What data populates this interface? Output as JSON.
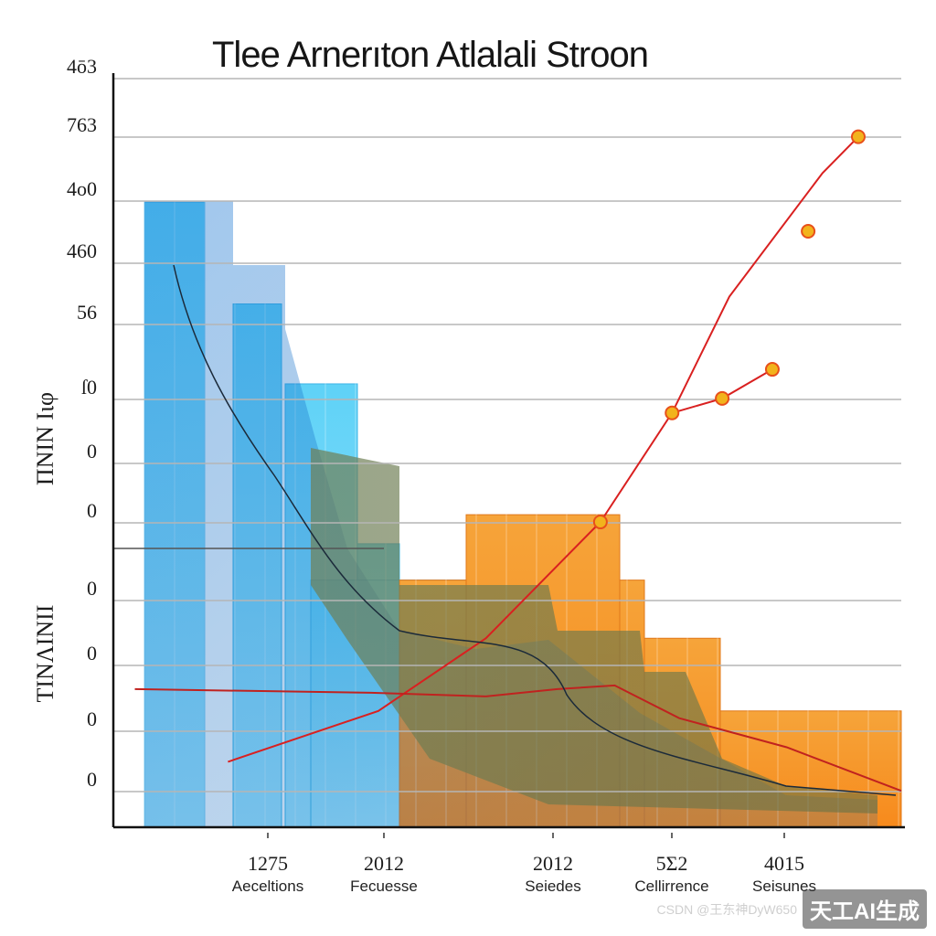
{
  "chart_data": {
    "type": "bar",
    "title": "Tlee Arnerıton Atlalali Stroon",
    "y_tick_labels": [
      "4ō3",
      "763",
      "4o0",
      "460",
      "56",
      "ſ0",
      "0",
      "0",
      "0",
      "0",
      "0",
      "0"
    ],
    "y_axis_label_upper": "ΠΝΙΝ Ιιφ",
    "y_axis_label_lower": "ΤΙΝΛΙΝΙΙ",
    "x_tick_labels": [
      {
        "value": "1275",
        "sub": "Aeceltions"
      },
      {
        "value": "2012",
        "sub": "Fecuesse"
      },
      {
        "value": "2012",
        "sub": "Seiedes"
      },
      {
        "value": "5Σ2",
        "sub": "Cellirrence"
      },
      {
        "value": "4015",
        "sub": "Seisunes"
      }
    ],
    "blue_bars": [
      {
        "label": "b1",
        "value": 10.6
      },
      {
        "label": "b2",
        "value": 9.2
      },
      {
        "label": "b3",
        "value": 8.1
      },
      {
        "label": "b4",
        "value": 5.9
      },
      {
        "label": "b5",
        "value": 5.4
      }
    ],
    "orange_bars": [
      {
        "label": "o1",
        "value": 5.4
      },
      {
        "label": "o2",
        "value": 6.3
      },
      {
        "label": "o3",
        "value": 5.4
      },
      {
        "label": "o4",
        "value": 4.6
      },
      {
        "label": "o5",
        "value": 3.6
      }
    ],
    "lines": [
      {
        "points": [
          [
            0.6,
            2.9
          ],
          [
            2.7,
            3.6
          ],
          [
            4.2,
            4.6
          ],
          [
            5.8,
            6.2
          ],
          [
            6.8,
            7.7
          ],
          [
            7.6,
            9.3
          ],
          [
            8.9,
            11.0
          ],
          [
            9.4,
            11.5
          ]
        ],
        "markers": [
          [
            5.8,
            6.2
          ],
          [
            8.7,
            10.2
          ],
          [
            9.4,
            11.5
          ]
        ]
      },
      {
        "points": [
          [
            6.8,
            7.7
          ],
          [
            7.5,
            7.9
          ],
          [
            8.2,
            8.3
          ]
        ],
        "markers": [
          [
            6.8,
            7.7
          ],
          [
            7.5,
            7.9
          ],
          [
            8.2,
            8.3
          ]
        ]
      },
      {
        "points": [
          [
            -0.7,
            3.9
          ],
          [
            2.6,
            3.85
          ],
          [
            4.2,
            3.8
          ],
          [
            5.2,
            3.9
          ],
          [
            6.0,
            3.95
          ],
          [
            6.9,
            3.5
          ],
          [
            8.4,
            3.1
          ],
          [
            10.0,
            2.5
          ]
        ],
        "markers": []
      }
    ],
    "ylim": [
      2.0,
      12.3
    ],
    "xlim": [
      -1.0,
      10.0
    ],
    "grid": true,
    "colors": {
      "blue": "#4fc8f3",
      "blue_dark": "#1e88d8",
      "orange": "#f69a2c",
      "line": "#d92020",
      "marker": "#f2b31c",
      "grid": "#b5b5b5"
    }
  },
  "watermark": {
    "sub": "CSDN @王东神DyW650",
    "main": "天工AI生成"
  }
}
